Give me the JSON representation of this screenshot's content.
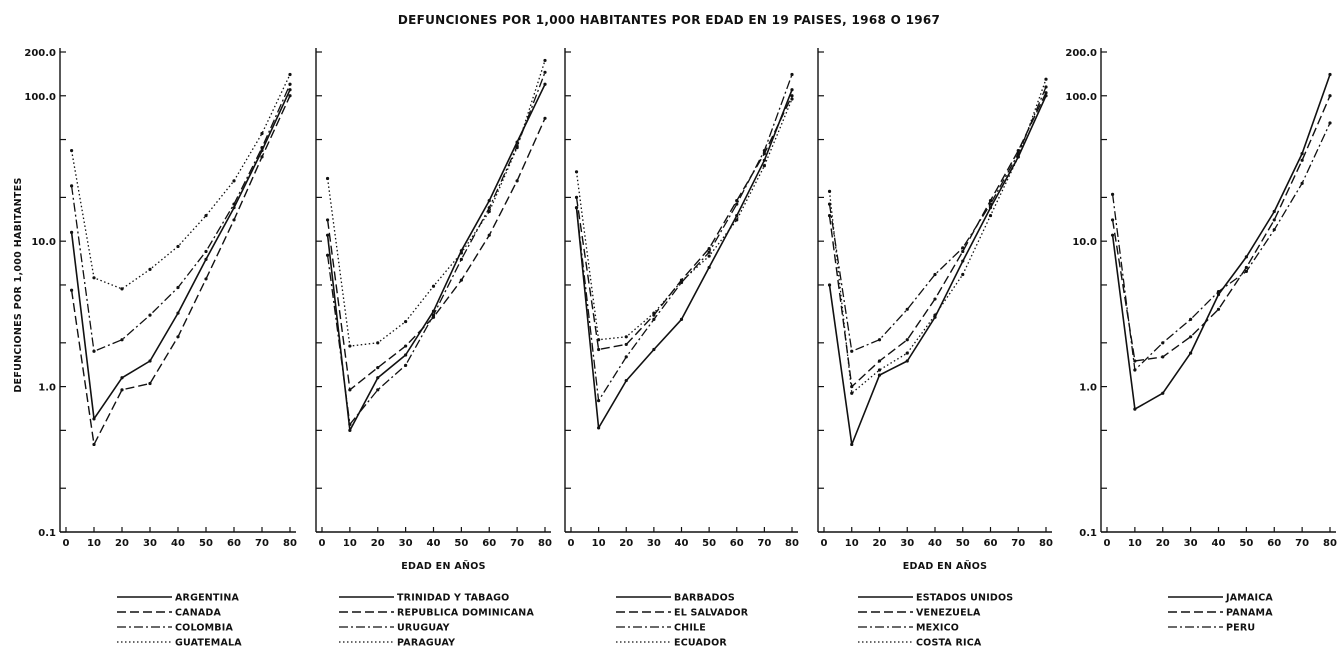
{
  "title": "DEFUNCIONES POR 1,000 HABITANTES POR EDAD EN 19 PAISES, 1968 O 1967",
  "chart_data": {
    "type": "line",
    "title": "DEFUNCIONES POR 1,000 HABITANTES POR EDAD EN 19 PAISES, 1968 O 1967",
    "ylabel": "DEFUNCIONES POR 1,000 HABITANTES",
    "xlabel": "EDAD EN AÑOS",
    "y_scale": "log",
    "ylim": [
      0.1,
      200
    ],
    "y_ticks": [
      "0.1",
      "1.0",
      "10.0",
      "100.0",
      "200.0"
    ],
    "xlim": [
      0,
      82
    ],
    "x_ticks": [
      "0",
      "10",
      "20",
      "30",
      "40",
      "50",
      "60",
      "70",
      "80"
    ],
    "grid": false,
    "legend_position": "bottom",
    "panels": [
      {
        "y_ticks": [
          "0.1",
          "1.0",
          "10.0",
          "100.0",
          "200.0"
        ],
        "series": [
          {
            "name": "ARGENTINA",
            "style": "solid",
            "x": [
              2,
              10,
              20,
              30,
              40,
              50,
              60,
              70,
              80
            ],
            "y": [
              11.5,
              0.6,
              1.15,
              1.5,
              3.2,
              7.5,
              17,
              42,
              110
            ]
          },
          {
            "name": "CANADA",
            "style": "dashed",
            "x": [
              2,
              10,
              20,
              30,
              40,
              50,
              60,
              70,
              80
            ],
            "y": [
              4.6,
              0.4,
              0.95,
              1.05,
              2.2,
              5.5,
              14,
              38,
              100
            ]
          },
          {
            "name": "COLOMBIA",
            "style": "dashdot",
            "x": [
              2,
              10,
              20,
              30,
              40,
              50,
              60,
              70,
              80
            ],
            "y": [
              24,
              1.75,
              2.1,
              3.1,
              4.8,
              8.5,
              18,
              44,
              120
            ]
          },
          {
            "name": "GUATEMALA",
            "style": "dotted",
            "x": [
              2,
              10,
              20,
              30,
              40,
              50,
              60,
              70,
              80
            ],
            "y": [
              42,
              5.6,
              4.7,
              6.4,
              9.2,
              15,
              26,
              55,
              140
            ]
          }
        ]
      },
      {
        "y_ticks": [],
        "series": [
          {
            "name": "TRINIDAD Y TABAGO",
            "style": "solid",
            "x": [
              2,
              10,
              20,
              30,
              40,
              50,
              60,
              70,
              80
            ],
            "y": [
              11,
              0.5,
              1.15,
              1.65,
              3.3,
              8.6,
              19,
              48,
              120
            ]
          },
          {
            "name": "REPUBLICA DOMINICANA",
            "style": "dashed",
            "x": [
              2,
              10,
              20,
              30,
              40,
              50,
              60,
              70,
              80
            ],
            "y": [
              14,
              0.95,
              1.35,
              1.9,
              3.0,
              5.4,
              11,
              26,
              70
            ]
          },
          {
            "name": "URUGUAY",
            "style": "dashdot",
            "x": [
              2,
              10,
              20,
              30,
              40,
              50,
              60,
              70,
              80
            ],
            "y": [
              8,
              0.55,
              0.95,
              1.4,
              3.1,
              7.5,
              17,
              45,
              145
            ]
          },
          {
            "name": "PARAGUAY",
            "style": "dotted",
            "x": [
              2,
              10,
              20,
              30,
              40,
              50,
              60,
              70,
              80
            ],
            "y": [
              27,
              1.9,
              2.0,
              2.8,
              4.9,
              8.3,
              16,
              44,
              175
            ]
          }
        ]
      },
      {
        "y_ticks": [],
        "series": [
          {
            "name": "BARBADOS",
            "style": "solid",
            "x": [
              2,
              10,
              20,
              30,
              40,
              50,
              60,
              70,
              80
            ],
            "y": [
              17,
              0.52,
              1.1,
              1.8,
              2.9,
              6.6,
              15,
              36,
              110
            ]
          },
          {
            "name": "EL SALVADOR",
            "style": "dashed",
            "x": [
              2,
              10,
              20,
              30,
              40,
              50,
              60,
              70,
              80
            ],
            "y": [
              20,
              1.8,
              1.95,
              3.1,
              5.4,
              8.9,
              19,
              40,
              100
            ]
          },
          {
            "name": "CHILE",
            "style": "dashdot",
            "x": [
              2,
              10,
              20,
              30,
              40,
              50,
              60,
              70,
              80
            ],
            "y": [
              17,
              0.8,
              1.6,
              2.9,
              5.2,
              8.4,
              18,
              42,
              140
            ]
          },
          {
            "name": "ECUADOR",
            "style": "dotted",
            "x": [
              2,
              10,
              20,
              30,
              40,
              50,
              60,
              70,
              80
            ],
            "y": [
              30,
              2.1,
              2.2,
              3.2,
              5.3,
              7.9,
              14,
              33,
              95
            ]
          }
        ]
      },
      {
        "y_ticks": [],
        "series": [
          {
            "name": "ESTADOS UNIDOS",
            "style": "solid",
            "x": [
              2,
              10,
              20,
              30,
              40,
              50,
              60,
              70,
              80
            ],
            "y": [
              5,
              0.4,
              1.2,
              1.5,
              3.0,
              7.3,
              17,
              38,
              100
            ]
          },
          {
            "name": "VENEZUELA",
            "style": "dashed",
            "x": [
              2,
              10,
              20,
              30,
              40,
              50,
              60,
              70,
              80
            ],
            "y": [
              15,
              1.0,
              1.5,
              2.1,
              4.0,
              8.5,
              19,
              42,
              105
            ]
          },
          {
            "name": "MEXICO",
            "style": "dashdot",
            "x": [
              2,
              10,
              20,
              30,
              40,
              50,
              60,
              70,
              80
            ],
            "y": [
              18,
              1.75,
              2.1,
              3.4,
              5.9,
              9.0,
              18,
              40,
              115
            ]
          },
          {
            "name": "COSTA RICA",
            "style": "dotted",
            "x": [
              2,
              10,
              20,
              30,
              40,
              50,
              60,
              70,
              80
            ],
            "y": [
              22,
              0.9,
              1.3,
              1.7,
              3.1,
              5.9,
              15,
              38,
              130
            ]
          }
        ]
      },
      {
        "y_ticks": [
          "0.1",
          "1.0",
          "10.0",
          "100.0",
          "200.0"
        ],
        "series": [
          {
            "name": "JAMAICA",
            "style": "solid",
            "x": [
              2,
              10,
              20,
              30,
              40,
              50,
              60,
              70,
              80
            ],
            "y": [
              11,
              0.7,
              0.9,
              1.7,
              4.3,
              7.8,
              16,
              40,
              140
            ]
          },
          {
            "name": "PANAMA",
            "style": "dashed",
            "x": [
              2,
              10,
              20,
              30,
              40,
              50,
              60,
              70,
              80
            ],
            "y": [
              14,
              1.5,
              1.6,
              2.2,
              3.4,
              6.6,
              14,
              36,
              100
            ]
          },
          {
            "name": "PERU",
            "style": "dashdot",
            "x": [
              2,
              10,
              20,
              30,
              40,
              50,
              60,
              70,
              80
            ],
            "y": [
              21,
              1.3,
              2.0,
              2.9,
              4.5,
              6.2,
              12,
              25,
              65
            ]
          }
        ]
      }
    ]
  }
}
